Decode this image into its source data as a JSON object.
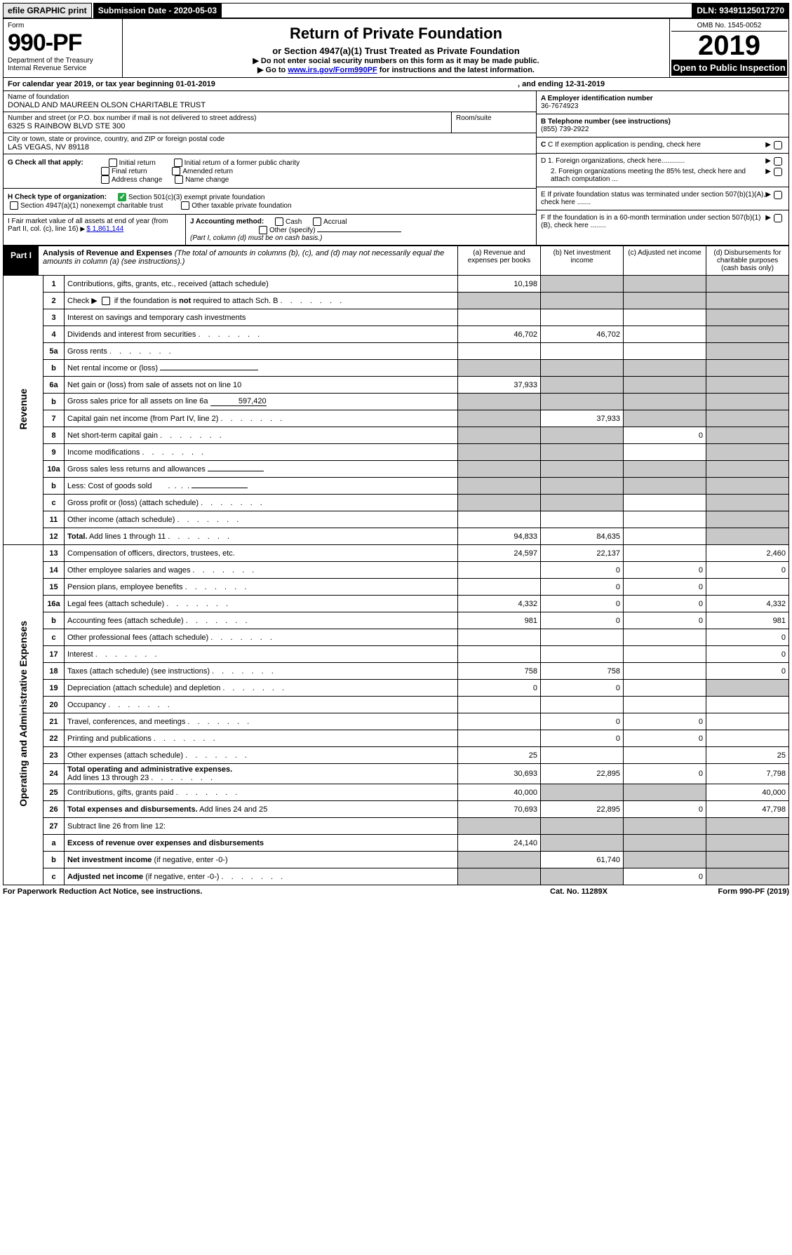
{
  "topbar": {
    "efile": "efile GRAPHIC print",
    "subdate_label": "Submission Date - 2020-05-03",
    "dln": "DLN: 93491125017270"
  },
  "header": {
    "form_word": "Form",
    "form_num": "990-PF",
    "dept1": "Department of the Treasury",
    "dept2": "Internal Revenue Service",
    "title": "Return of Private Foundation",
    "subtitle": "or Section 4947(a)(1) Trust Treated as Private Foundation",
    "instr1": "▶ Do not enter social security numbers on this form as it may be made public.",
    "instr2_a": "▶ Go to ",
    "instr2_link": "www.irs.gov/Form990PF",
    "instr2_b": " for instructions and the latest information.",
    "omb": "OMB No. 1545-0052",
    "year": "2019",
    "open": "Open to Public Inspection"
  },
  "cal": {
    "a": "For calendar year 2019, or tax year beginning 01-01-2019",
    "b": ", and ending 12-31-2019"
  },
  "info": {
    "name_label": "Name of foundation",
    "name": "DONALD AND MAUREEN OLSON CHARITABLE TRUST",
    "addr_label": "Number and street (or P.O. box number if mail is not delivered to street address)",
    "addr": "6325 S RAINBOW BLVD STE 300",
    "room_label": "Room/suite",
    "city_label": "City or town, state or province, country, and ZIP or foreign postal code",
    "city": "LAS VEGAS, NV  89118",
    "A_label": "A Employer identification number",
    "A_val": "36-7674923",
    "B_label": "B Telephone number (see instructions)",
    "B_val": "(855) 739-2922",
    "C": "C If exemption application is pending, check here",
    "D1": "D 1. Foreign organizations, check here............",
    "D2": "2. Foreign organizations meeting the 85% test, check here and attach computation ...",
    "E": "E  If private foundation status was terminated under section 507(b)(1)(A), check here .......",
    "F": "F  If the foundation is in a 60-month termination under section 507(b)(1)(B), check here ........"
  },
  "G": {
    "label": "G Check all that apply:",
    "opts": [
      "Initial return",
      "Initial return of a former public charity",
      "Final return",
      "Amended return",
      "Address change",
      "Name change"
    ]
  },
  "H": {
    "label": "H Check type of organization:",
    "a": "Section 501(c)(3) exempt private foundation",
    "b": "Section 4947(a)(1) nonexempt charitable trust",
    "c": "Other taxable private foundation"
  },
  "I": {
    "label": "I Fair market value of all assets at end of year (from Part II, col. (c), line 16)",
    "val": "$  1,861,144"
  },
  "J": {
    "label": "J Accounting method:",
    "cash": "Cash",
    "accrual": "Accrual",
    "other": "Other (specify)",
    "note": "(Part I, column (d) must be on cash basis.)"
  },
  "part1": {
    "tab": "Part I",
    "title": "Analysis of Revenue and Expenses",
    "note": "(The total of amounts in columns (b), (c), and (d) may not necessarily equal the amounts in column (a) (see instructions).)",
    "col_a": "(a)   Revenue and expenses per books",
    "col_b": "(b)  Net investment income",
    "col_c": "(c)  Adjusted net income",
    "col_d": "(d)  Disbursements for charitable purposes (cash basis only)"
  },
  "sections": {
    "revenue": "Revenue",
    "opex": "Operating and Administrative Expenses"
  },
  "rows": [
    {
      "n": "1",
      "d": "",
      "a": "10,198",
      "b": "",
      "c": "",
      "shade_b": true,
      "shade_c": true,
      "shade_d": true
    },
    {
      "n": "2",
      "d": "",
      "a": "",
      "b": "",
      "c": "",
      "shade_a": true,
      "shade_b": true,
      "shade_c": true,
      "shade_d": true,
      "dots": true
    },
    {
      "n": "3",
      "d": "",
      "a": "",
      "b": "",
      "c": "",
      "shade_d": true
    },
    {
      "n": "4",
      "d": "",
      "a": "46,702",
      "b": "46,702",
      "c": "",
      "shade_d": true,
      "dots": true
    },
    {
      "n": "5a",
      "d": "",
      "a": "",
      "b": "",
      "c": "",
      "shade_d": true,
      "dots": true
    },
    {
      "n": "b",
      "d": "",
      "a": "",
      "b": "",
      "c": "",
      "shade_a": true,
      "shade_b": true,
      "shade_c": true,
      "shade_d": true,
      "inline": true
    },
    {
      "n": "6a",
      "d": "",
      "a": "37,933",
      "b": "",
      "c": "",
      "shade_b": true,
      "shade_c": true,
      "shade_d": true
    },
    {
      "n": "b",
      "d": "",
      "a": "",
      "b": "",
      "c": "",
      "shade_a": true,
      "shade_b": true,
      "shade_c": true,
      "shade_d": true,
      "inline": true,
      "inline_val": "597,420"
    },
    {
      "n": "7",
      "d": "",
      "a": "",
      "b": "37,933",
      "c": "",
      "shade_a": true,
      "shade_c": true,
      "shade_d": true,
      "dots": true
    },
    {
      "n": "8",
      "d": "",
      "a": "",
      "b": "",
      "c": "0",
      "shade_a": true,
      "shade_b": true,
      "shade_d": true,
      "dots": true
    },
    {
      "n": "9",
      "d": "",
      "a": "",
      "b": "",
      "c": "",
      "shade_a": true,
      "shade_b": true,
      "shade_d": true,
      "dots": true
    },
    {
      "n": "10a",
      "d": "",
      "a": "",
      "b": "",
      "c": "",
      "shade_a": true,
      "shade_b": true,
      "shade_c": true,
      "shade_d": true,
      "inline": true
    },
    {
      "n": "b",
      "d": "",
      "a": "",
      "b": "",
      "c": "",
      "shade_a": true,
      "shade_b": true,
      "shade_c": true,
      "shade_d": true,
      "inline": true,
      "dots": true
    },
    {
      "n": "c",
      "d": "",
      "a": "",
      "b": "",
      "c": "",
      "shade_a": true,
      "shade_b": true,
      "shade_d": true,
      "dots": true
    },
    {
      "n": "11",
      "d": "",
      "a": "",
      "b": "",
      "c": "",
      "shade_d": true,
      "dots": true
    },
    {
      "n": "12",
      "d": "",
      "a": "94,833",
      "b": "84,635",
      "c": "",
      "shade_d": true,
      "bold": true,
      "dots": true
    }
  ],
  "oprows": [
    {
      "n": "13",
      "d": "2,460",
      "a": "24,597",
      "b": "22,137",
      "c": ""
    },
    {
      "n": "14",
      "d": "0",
      "a": "",
      "b": "0",
      "c": "0",
      "dots": true
    },
    {
      "n": "15",
      "d": "",
      "a": "",
      "b": "0",
      "c": "0",
      "dots": true
    },
    {
      "n": "16a",
      "d": "4,332",
      "a": "4,332",
      "b": "0",
      "c": "0",
      "dots": true
    },
    {
      "n": "b",
      "d": "981",
      "a": "981",
      "b": "0",
      "c": "0",
      "dots": true
    },
    {
      "n": "c",
      "d": "0",
      "a": "",
      "b": "",
      "c": "",
      "dots": true
    },
    {
      "n": "17",
      "d": "0",
      "a": "",
      "b": "",
      "c": "",
      "dots": true
    },
    {
      "n": "18",
      "d": "0",
      "a": "758",
      "b": "758",
      "c": "",
      "dots": true
    },
    {
      "n": "19",
      "d": "",
      "a": "0",
      "b": "0",
      "c": "",
      "shade_d": true,
      "dots": true
    },
    {
      "n": "20",
      "d": "",
      "a": "",
      "b": "",
      "c": "",
      "dots": true
    },
    {
      "n": "21",
      "d": "",
      "a": "",
      "b": "0",
      "c": "0",
      "dots": true
    },
    {
      "n": "22",
      "d": "",
      "a": "",
      "b": "0",
      "c": "0",
      "dots": true
    },
    {
      "n": "23",
      "d": "25",
      "a": "25",
      "b": "",
      "c": "",
      "dots": true
    },
    {
      "n": "24",
      "d": "7,798",
      "a": "30,693",
      "b": "22,895",
      "c": "0",
      "bold": true,
      "dots": true
    },
    {
      "n": "25",
      "d": "40,000",
      "a": "40,000",
      "b": "",
      "c": "",
      "shade_b": true,
      "shade_c": true,
      "dots": true
    },
    {
      "n": "26",
      "d": "47,798",
      "a": "70,693",
      "b": "22,895",
      "c": "0",
      "bold": true
    }
  ],
  "row27": [
    {
      "n": "27",
      "d": "",
      "a": "",
      "b": "",
      "c": "",
      "shade_a": true,
      "shade_b": true,
      "shade_c": true,
      "shade_d": true
    },
    {
      "n": "a",
      "d": "",
      "a": "24,140",
      "b": "",
      "c": "",
      "shade_b": true,
      "shade_c": true,
      "shade_d": true,
      "bold": true
    },
    {
      "n": "b",
      "d": "",
      "a": "",
      "b": "61,740",
      "c": "",
      "shade_a": true,
      "shade_c": true,
      "shade_d": true,
      "bold": true
    },
    {
      "n": "c",
      "d": "",
      "a": "",
      "b": "",
      "c": "0",
      "shade_a": true,
      "shade_b": true,
      "shade_d": true,
      "bold": true,
      "dots": true
    }
  ],
  "footer": {
    "l": "For Paperwork Reduction Act Notice, see instructions.",
    "m": "Cat. No. 11289X",
    "r": "Form 990-PF (2019)"
  }
}
